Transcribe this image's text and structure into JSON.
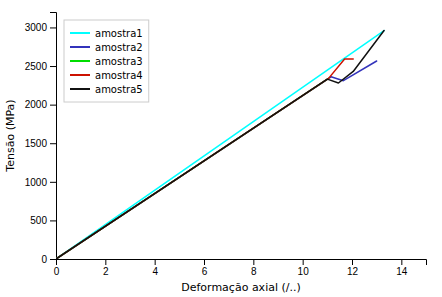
{
  "chart_data": {
    "type": "line",
    "xlabel": "Deformação axial (/..)",
    "ylabel": "Tensão (MPa)",
    "xlim": [
      0,
      15
    ],
    "ylim": [
      0,
      3200
    ],
    "xticks": [
      0,
      2,
      4,
      6,
      8,
      10,
      12,
      14
    ],
    "yticks": [
      0,
      500,
      1000,
      1500,
      2000,
      2500,
      3000
    ],
    "grid": false,
    "legend": "upper left",
    "series": [
      {
        "name": "amostra1",
        "color": "#00ffff",
        "x": [
          0,
          13.3
        ],
        "values": [
          0,
          2960
        ]
      },
      {
        "name": "amostra2",
        "color": "#3333bb",
        "x": [
          0,
          11.15,
          11.65,
          13.0
        ],
        "values": [
          0,
          2360,
          2310,
          2565
        ]
      },
      {
        "name": "amostra3",
        "color": "#00dd00",
        "x": [
          0,
          11.05
        ],
        "values": [
          0,
          2340
        ]
      },
      {
        "name": "amostra4",
        "color": "#cc1100",
        "x": [
          0,
          11.05,
          11.7,
          12.05
        ],
        "values": [
          0,
          2340,
          2590,
          2590
        ]
      },
      {
        "name": "amostra5",
        "color": "#111111",
        "x": [
          0,
          11.0,
          11.45,
          12.05,
          13.3
        ],
        "values": [
          0,
          2330,
          2280,
          2430,
          2960
        ]
      }
    ]
  }
}
